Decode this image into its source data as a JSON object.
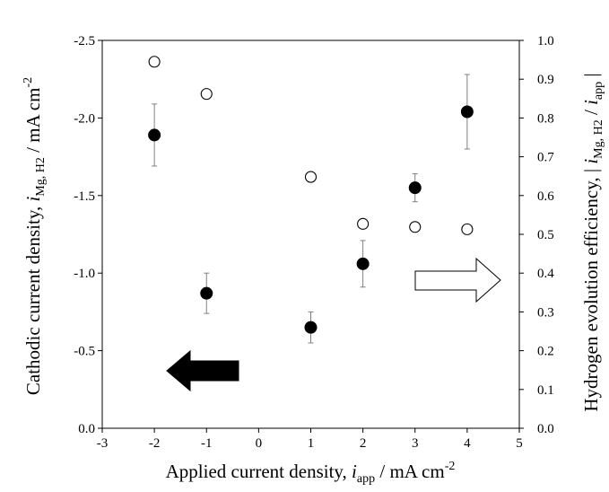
{
  "chart_data": {
    "type": "scatter",
    "xlabel": {
      "main": "Applied current density, ",
      "var": "i",
      "sub": "app",
      "rest": " / mA cm",
      "sup": "-2"
    },
    "ylabel_left": {
      "main": "Cathodic current density, ",
      "var": "i",
      "sub": "Mg, H2",
      "rest": " / mA cm",
      "sup": "-2"
    },
    "ylabel_right": {
      "main": "Hydrogen evolution efficiency, | ",
      "var": "i",
      "sub": "Mg, H2",
      "mid": " / ",
      "var2": "i",
      "sub2": "app",
      "end": " |"
    },
    "xlim": [
      -3,
      5
    ],
    "x_ticks": [
      "-3",
      "-2",
      "-1",
      "0",
      "1",
      "2",
      "3",
      "4",
      "5"
    ],
    "y_left_lim": [
      0,
      -2.5
    ],
    "y_left_ticks": [
      "0.0",
      "-0.5",
      "-1.0",
      "-1.5",
      "-2.0",
      "-2.5"
    ],
    "y_right_lim": [
      0,
      1.0
    ],
    "y_right_ticks": [
      "0.0",
      "0.1",
      "0.2",
      "0.3",
      "0.4",
      "0.5",
      "0.6",
      "0.7",
      "0.8",
      "0.9",
      "1.0"
    ],
    "grid": false,
    "series": [
      {
        "marker": "filled-circle",
        "axis": "left",
        "x": [
          -2,
          -1,
          1,
          2,
          3,
          4
        ],
        "y": [
          -1.89,
          -0.87,
          -0.65,
          -1.06,
          -1.55,
          -2.04
        ],
        "err": [
          0.2,
          0.13,
          0.1,
          0.15,
          0.09,
          0.24
        ]
      },
      {
        "marker": "open-circle",
        "axis": "right",
        "x": [
          -2,
          -1,
          1,
          2,
          3,
          4
        ],
        "y": [
          0.945,
          0.862,
          0.648,
          0.527,
          0.519,
          0.513
        ]
      }
    ],
    "annotations": [
      {
        "shape": "filled-arrow",
        "direction": "left",
        "points_to": "left axis"
      },
      {
        "shape": "open-arrow",
        "direction": "right",
        "points_to": "right axis"
      }
    ]
  }
}
